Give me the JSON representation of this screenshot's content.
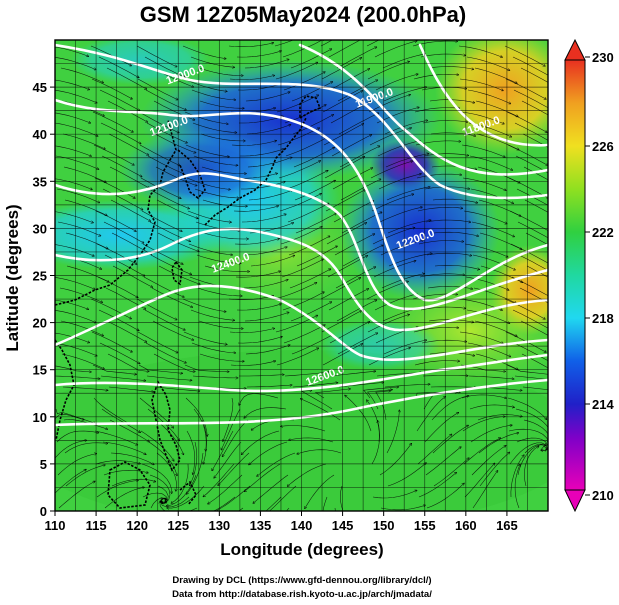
{
  "title": "GSM 12Z05May2024 (200.0hPa)",
  "xlabel": "Longitude (degrees)",
  "ylabel": "Latitude  (degrees)",
  "credits": {
    "line1": "Drawing by DCL (https://www.gfd-dennou.org/library/dcl/)",
    "line2": "Data from http://database.rish.kyoto-u.ac.jp/arch/jmadata/"
  },
  "chart_data": {
    "type": "map",
    "domain": {
      "lon": [
        110,
        170
      ],
      "lat": [
        0,
        50
      ]
    },
    "x_ticks": [
      110,
      115,
      120,
      125,
      130,
      135,
      140,
      145,
      150,
      155,
      160,
      165
    ],
    "y_ticks": [
      0,
      5,
      10,
      15,
      20,
      25,
      30,
      35,
      40,
      45
    ],
    "colorbar": {
      "min": 210,
      "max": 230,
      "ticks": [
        210,
        214,
        218,
        222,
        226,
        230
      ],
      "colors": [
        "#e800b8",
        "#2020c8",
        "#20d8f0",
        "#30d040",
        "#f0e020",
        "#e83020"
      ],
      "extend": "both"
    },
    "contour_labels": [
      {
        "text": "12000.0",
        "lon": 126,
        "lat": 46
      },
      {
        "text": "11900.0",
        "lon": 149,
        "lat": 43.5
      },
      {
        "text": "11800.0",
        "lon": 162,
        "lat": 40.5
      },
      {
        "text": "12100.0",
        "lon": 124,
        "lat": 40.5
      },
      {
        "text": "12200.0",
        "lon": 154,
        "lat": 28.5
      },
      {
        "text": "12400.0",
        "lon": 131.5,
        "lat": 26
      },
      {
        "text": "12600.0",
        "lon": 143,
        "lat": 14
      }
    ]
  }
}
